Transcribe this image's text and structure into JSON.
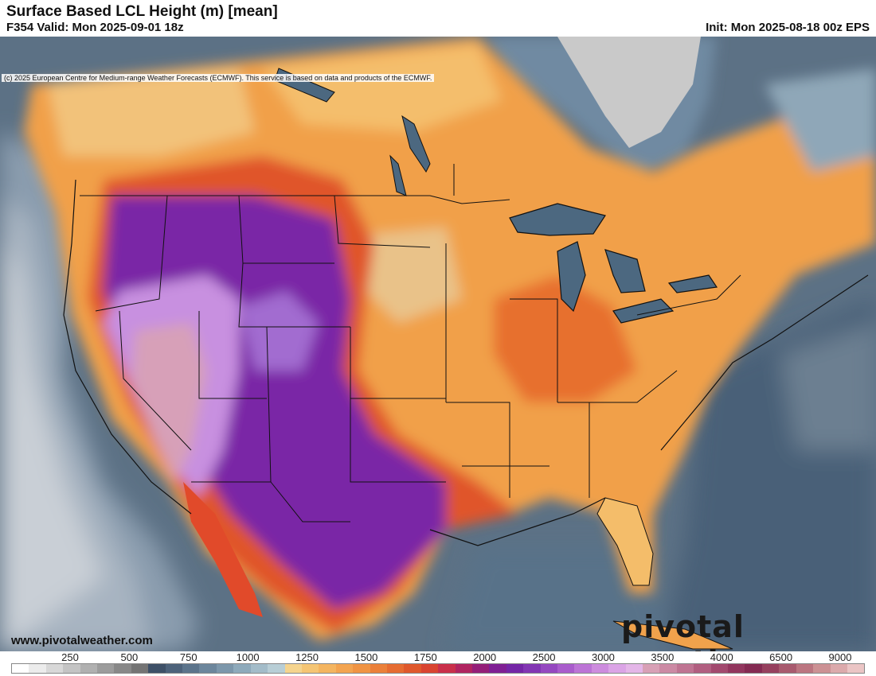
{
  "header": {
    "title": "Surface Based LCL Height (m) [mean]",
    "valid": "F354 Valid: Mon 2025-09-01 18z",
    "init": "Init: Mon 2025-08-18 00z EPS"
  },
  "map": {
    "copyright": "(c) 2025 European Centre for Medium-range Weather Forecasts (ECMWF). This service is based on data and products of the ECMWF.",
    "website": "www.pivotalweather.com",
    "logo": "pivotal weather",
    "colors": {
      "ocean_low": "#5c7185",
      "ocean_mid": "#7f97ab",
      "land_orange": "#f1a04a",
      "land_red": "#e0542c",
      "land_purple": "#7a26a6",
      "land_lilac": "#c890e0",
      "land_pink": "#d7a0b8",
      "lakes": "#4c6880",
      "borders": "#111111"
    }
  },
  "legend": {
    "tick_labels": [
      "250",
      "500",
      "750",
      "1000",
      "1250",
      "1500",
      "1750",
      "2000",
      "2500",
      "3000",
      "3500",
      "4000",
      "6500",
      "9000"
    ],
    "swatches": [
      "#ffffff",
      "#ececec",
      "#d8d8d8",
      "#c4c4c4",
      "#b0b0b0",
      "#9c9c9c",
      "#888888",
      "#747474",
      "#3e5067",
      "#4d627a",
      "#5c748b",
      "#6c869c",
      "#7c97ab",
      "#8eaabb",
      "#a3bcc9",
      "#b8ced6",
      "#f5d48e",
      "#f5c574",
      "#f4b560",
      "#f3a450",
      "#f09444",
      "#eb803a",
      "#e66c32",
      "#df582c",
      "#d94430",
      "#c92f4a",
      "#b02460",
      "#941e78",
      "#7f1f94",
      "#7426a6",
      "#8236b3",
      "#9548c0",
      "#a95ccc",
      "#bc74d6",
      "#cd8cde",
      "#dba4e6",
      "#e4b6e8",
      "#d8a0b6",
      "#cc8aa4",
      "#bf7492",
      "#b15e80",
      "#a2496e",
      "#92365e",
      "#842a52",
      "#96405e",
      "#a85a6e",
      "#bb7580",
      "#cc9194",
      "#dcaaac",
      "#ebc5c5"
    ]
  }
}
